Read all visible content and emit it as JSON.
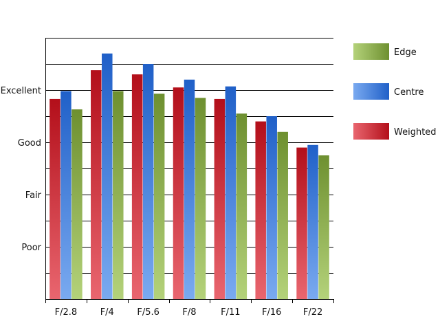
{
  "chart_data": {
    "type": "bar",
    "title": "",
    "xlabel": "",
    "ylabel": "",
    "categories": [
      "F/2.8",
      "F/4",
      "F/5.6",
      "F/8",
      "F/11",
      "F/16",
      "F/22"
    ],
    "y_ticks": [
      {
        "value": 1,
        "label": "Poor"
      },
      {
        "value": 2,
        "label": "Fair"
      },
      {
        "value": 3,
        "label": "Good"
      },
      {
        "value": 4,
        "label": "Excellent"
      }
    ],
    "ylim": [
      0,
      5
    ],
    "grid": true,
    "legend_position": "right",
    "series": [
      {
        "name": "Weighted",
        "color_light": "#e9666f",
        "color_dark": "#b30f1a",
        "values": [
          3.83,
          4.38,
          4.3,
          4.05,
          3.83,
          3.4,
          2.9
        ]
      },
      {
        "name": "Centre",
        "color_light": "#7aaaf0",
        "color_dark": "#2060c8",
        "values": [
          3.98,
          4.7,
          4.5,
          4.2,
          4.07,
          3.5,
          2.95
        ]
      },
      {
        "name": "Edge",
        "color_light": "#b4d27a",
        "color_dark": "#6e9030",
        "values": [
          3.63,
          3.98,
          3.93,
          3.85,
          3.55,
          3.2,
          2.75
        ]
      }
    ],
    "legend_order": [
      "Edge",
      "Centre",
      "Weighted"
    ]
  }
}
